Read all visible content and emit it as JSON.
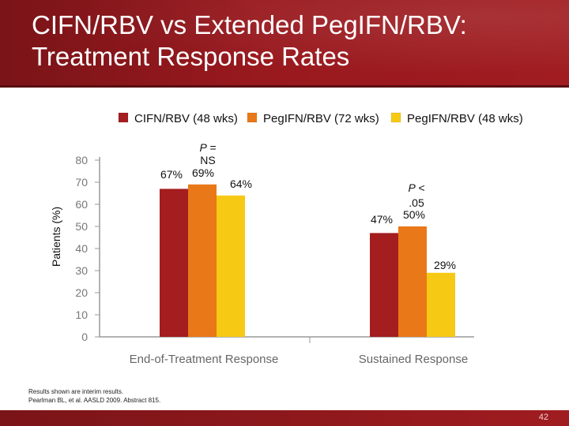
{
  "slide": {
    "title_line1": "CIFN/RBV vs Extended PegIFN/RBV:",
    "title_line2": "Treatment Response Rates",
    "page_number": "42",
    "note_line1": "Results shown are interim results.",
    "note_line2": "Pearlman BL, et al. AASLD 2009. Abstract 815."
  },
  "chart_data": {
    "type": "bar",
    "title": "",
    "xlabel": "",
    "ylabel": "Patients (%)",
    "ylim": [
      0,
      80
    ],
    "yticks": [
      "0",
      "10",
      "20",
      "30",
      "40",
      "50",
      "60",
      "70",
      "80"
    ],
    "categories": [
      "End-of-Treatment Response",
      "Sustained Response"
    ],
    "series": [
      {
        "name": "CIFN/RBV (48 wks)",
        "color": "#a41d1f",
        "values": [
          67,
          47
        ],
        "labels": [
          "67%",
          "47%"
        ]
      },
      {
        "name": "PegIFN/RBV (72 wks)",
        "color": "#e97819",
        "values": [
          69,
          50
        ],
        "labels": [
          "69%",
          "50%"
        ]
      },
      {
        "name": "PegIFN/RBV (48 wks)",
        "color": "#f6c915",
        "values": [
          64,
          29
        ],
        "labels": [
          "64%",
          "29%"
        ]
      }
    ],
    "annotations": [
      {
        "category": 0,
        "text_line1": "P =",
        "text_line2": "NS"
      },
      {
        "category": 1,
        "text_line1": "P <",
        "text_line2": ".05"
      }
    ]
  }
}
